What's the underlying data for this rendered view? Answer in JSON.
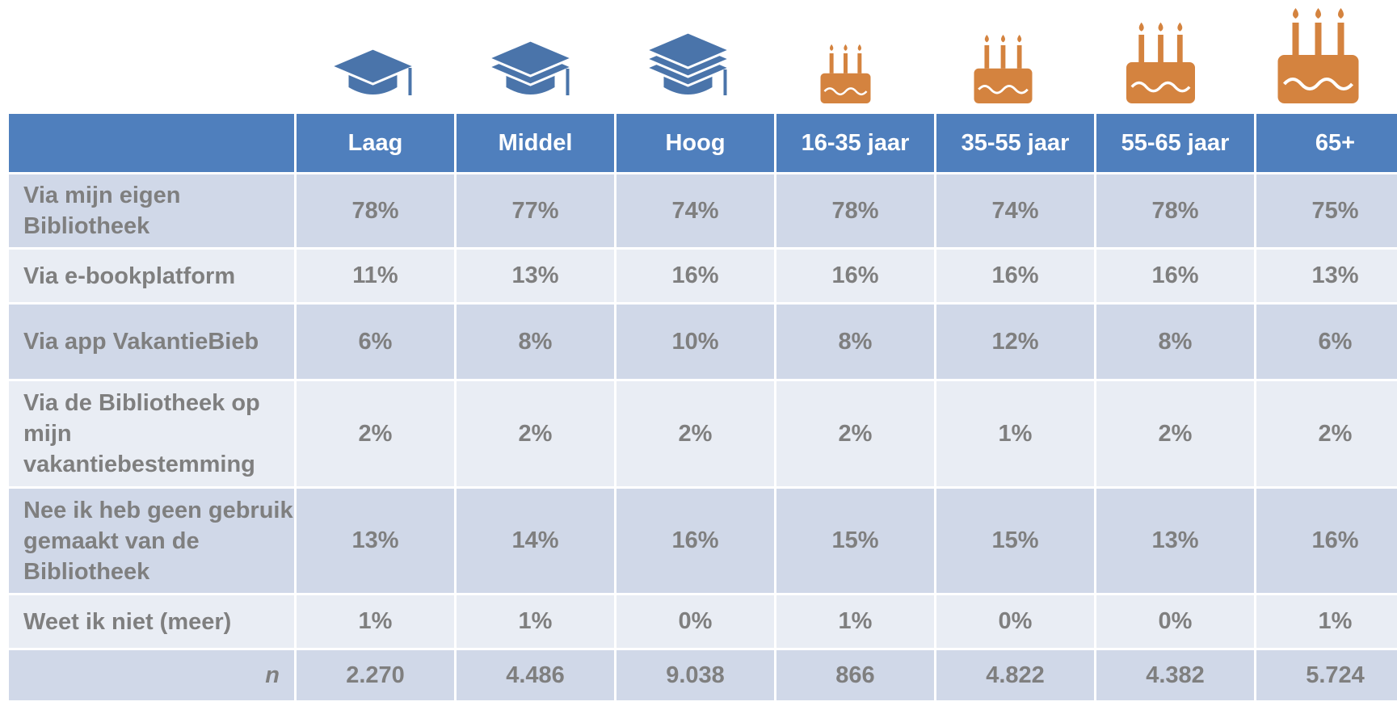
{
  "table": {
    "columns": [
      "Laag",
      "Middel",
      "Hoog",
      "16-35 jaar",
      "35-55 jaar",
      "55-65 jaar",
      "65+"
    ],
    "rows": [
      {
        "label": "Via mijn eigen Bibliotheek",
        "values": [
          "78%",
          "77%",
          "74%",
          "78%",
          "74%",
          "78%",
          "75%"
        ]
      },
      {
        "label": "Via e-bookplatform",
        "values": [
          "11%",
          "13%",
          "16%",
          "16%",
          "16%",
          "16%",
          "13%"
        ]
      },
      {
        "label": "Via app VakantieBieb",
        "values": [
          "6%",
          "8%",
          "10%",
          "8%",
          "12%",
          "8%",
          "6%"
        ]
      },
      {
        "label": "Via de Bibliotheek op mijn vakantiebestemming",
        "values": [
          "2%",
          "2%",
          "2%",
          "2%",
          "1%",
          "2%",
          "2%"
        ]
      },
      {
        "label": "Nee ik heb geen gebruik gemaakt van de Bibliotheek",
        "values": [
          "13%",
          "14%",
          "16%",
          "15%",
          "15%",
          "13%",
          "16%"
        ]
      },
      {
        "label": "Weet ik niet (meer)",
        "values": [
          "1%",
          "1%",
          "0%",
          "1%",
          "0%",
          "0%",
          "1%"
        ]
      },
      {
        "label": "n",
        "values": [
          "2.270",
          "4.486",
          "9.038",
          "866",
          "4.822",
          "4.382",
          "5.724"
        ]
      }
    ]
  }
}
